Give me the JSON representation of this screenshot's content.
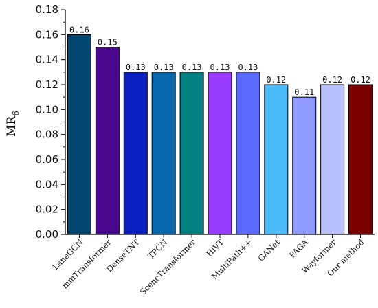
{
  "chart_data": {
    "type": "bar",
    "ylabel": "MR",
    "ylabel_subscript": "6",
    "ylim": [
      0,
      0.18
    ],
    "yticks": [
      "0.00",
      "0.02",
      "0.04",
      "0.06",
      "0.08",
      "0.10",
      "0.12",
      "0.14",
      "0.16",
      "0.18"
    ],
    "grid": false,
    "categories": [
      "LaneGCN",
      "mmTransformer",
      "DenseTNT",
      "TPCN",
      "ScencTransformer",
      "HiVT",
      "MultiPath++",
      "GANet",
      "PAGA",
      "Wayformer",
      "Our method"
    ],
    "values": [
      0.16,
      0.15,
      0.13,
      0.13,
      0.13,
      0.13,
      0.13,
      0.12,
      0.11,
      0.12,
      0.12
    ],
    "data_labels": [
      "0.16",
      "0.15",
      "0.13",
      "0.13",
      "0.13",
      "0.13",
      "0.13",
      "0.12",
      "0.11",
      "0.12",
      "0.12"
    ],
    "bar_colors": [
      "#00466e",
      "#48068c",
      "#0a1fc0",
      "#0768ae",
      "#008080",
      "#9a3cff",
      "#5a6afc",
      "#4bbaf8",
      "#8f99fb",
      "#b8c0fb",
      "#7a0000"
    ],
    "data_label_colors": [
      "#111111",
      "#111111",
      "#111111",
      "#111111",
      "#111111",
      "#111111",
      "#111111",
      "#111111",
      "#ff3030",
      "#111111",
      "#111111"
    ]
  }
}
